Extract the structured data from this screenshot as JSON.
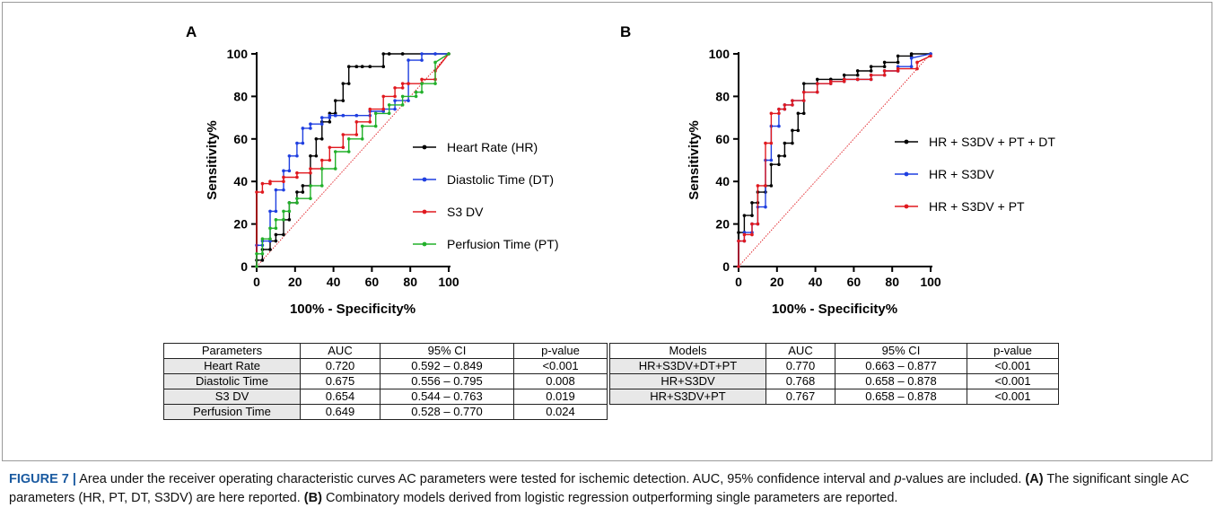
{
  "chart_data": [
    {
      "type": "line",
      "panel": "A",
      "xlabel": "100% - Specificity%",
      "ylabel": "Sensitivity%",
      "xlim": [
        0,
        100
      ],
      "ylim": [
        0,
        100
      ],
      "xticks": [
        "0",
        "20",
        "40",
        "60",
        "80",
        "100"
      ],
      "yticks": [
        "0",
        "20",
        "40",
        "60",
        "80",
        "100"
      ],
      "reference_line": true,
      "legend_position": "center-right",
      "series": [
        {
          "name": "Heart Rate (HR)",
          "color": "#000000",
          "x": [
            0,
            0,
            3,
            3,
            7,
            7,
            10,
            10,
            14,
            14,
            17,
            17,
            21,
            21,
            24,
            24,
            28,
            28,
            31,
            31,
            34,
            34,
            38,
            38,
            41,
            41,
            45,
            45,
            48,
            48,
            52,
            52,
            55,
            55,
            59,
            59,
            66,
            66,
            69,
            69,
            76,
            76,
            100
          ],
          "y": [
            0,
            3,
            3,
            8,
            8,
            12,
            12,
            15,
            15,
            22,
            22,
            30,
            30,
            35,
            35,
            38,
            38,
            52,
            52,
            60,
            60,
            68,
            68,
            72,
            72,
            78,
            78,
            86,
            86,
            94,
            94,
            94,
            94,
            94,
            94,
            94,
            94,
            100,
            100,
            100,
            100,
            100,
            100
          ]
        },
        {
          "name": "Diastolic Time (DT)",
          "color": "#1f3fe0",
          "x": [
            0,
            0,
            3,
            3,
            7,
            7,
            10,
            10,
            14,
            14,
            17,
            17,
            21,
            21,
            24,
            24,
            28,
            28,
            34,
            34,
            38,
            38,
            41,
            41,
            45,
            45,
            52,
            52,
            59,
            59,
            66,
            66,
            72,
            72,
            79,
            79,
            86,
            86,
            93,
            93,
            100
          ],
          "y": [
            0,
            10,
            10,
            12,
            12,
            26,
            26,
            36,
            36,
            45,
            45,
            52,
            52,
            58,
            58,
            65,
            65,
            67,
            67,
            70,
            70,
            71,
            71,
            71,
            71,
            71,
            71,
            71,
            71,
            73,
            73,
            74,
            74,
            78,
            78,
            97,
            97,
            100,
            100,
            100,
            100
          ]
        },
        {
          "name": "S3 DV",
          "color": "#e0191f",
          "x": [
            0,
            0,
            3,
            3,
            7,
            7,
            14,
            14,
            21,
            21,
            28,
            28,
            34,
            34,
            38,
            38,
            45,
            45,
            52,
            52,
            59,
            59,
            66,
            66,
            72,
            72,
            76,
            76,
            79,
            79,
            86,
            86,
            93,
            93,
            100
          ],
          "y": [
            0,
            35,
            35,
            39,
            39,
            40,
            40,
            42,
            42,
            44,
            44,
            46,
            46,
            50,
            50,
            56,
            56,
            62,
            62,
            68,
            68,
            74,
            74,
            80,
            80,
            84,
            84,
            86,
            86,
            86,
            86,
            88,
            88,
            92,
            100
          ]
        },
        {
          "name": "Perfusion Time (PT)",
          "color": "#22b02a",
          "x": [
            0,
            0,
            3,
            3,
            7,
            7,
            10,
            10,
            14,
            14,
            17,
            17,
            21,
            21,
            28,
            28,
            34,
            34,
            41,
            41,
            48,
            48,
            55,
            55,
            62,
            62,
            69,
            69,
            76,
            76,
            83,
            83,
            86,
            86,
            93,
            93,
            100
          ],
          "y": [
            0,
            6,
            6,
            13,
            13,
            18,
            18,
            22,
            22,
            26,
            26,
            30,
            30,
            32,
            32,
            38,
            38,
            46,
            46,
            54,
            54,
            60,
            60,
            66,
            66,
            72,
            72,
            76,
            76,
            80,
            80,
            82,
            82,
            86,
            86,
            96,
            100
          ]
        }
      ]
    },
    {
      "type": "line",
      "panel": "B",
      "xlabel": "100% - Specificity%",
      "ylabel": "Sensitivity%",
      "xlim": [
        0,
        100
      ],
      "ylim": [
        0,
        100
      ],
      "xticks": [
        "0",
        "20",
        "40",
        "60",
        "80",
        "100"
      ],
      "yticks": [
        "0",
        "20",
        "40",
        "60",
        "80",
        "100"
      ],
      "reference_line": true,
      "legend_position": "center-right",
      "series": [
        {
          "name": "HR + S3DV + PT + DT",
          "color": "#000000",
          "x": [
            0,
            0,
            3,
            3,
            7,
            7,
            10,
            10,
            14,
            14,
            17,
            17,
            21,
            21,
            24,
            24,
            28,
            28,
            31,
            31,
            34,
            34,
            41,
            41,
            48,
            48,
            55,
            55,
            62,
            62,
            69,
            69,
            76,
            76,
            83,
            83,
            90,
            90,
            100
          ],
          "y": [
            0,
            16,
            16,
            24,
            24,
            30,
            30,
            35,
            35,
            38,
            38,
            48,
            48,
            52,
            52,
            58,
            58,
            64,
            64,
            72,
            72,
            86,
            86,
            88,
            88,
            88,
            88,
            90,
            90,
            92,
            92,
            94,
            94,
            96,
            96,
            99,
            99,
            100,
            100
          ]
        },
        {
          "name": "HR + S3DV",
          "color": "#1f3fe0",
          "x": [
            0,
            0,
            3,
            3,
            7,
            7,
            10,
            10,
            14,
            14,
            17,
            17,
            21,
            21,
            24,
            24,
            28,
            28,
            34,
            34,
            41,
            41,
            48,
            48,
            55,
            55,
            62,
            62,
            69,
            69,
            76,
            76,
            83,
            83,
            90,
            90,
            100
          ],
          "y": [
            0,
            12,
            12,
            16,
            16,
            20,
            20,
            28,
            28,
            50,
            50,
            66,
            66,
            74,
            74,
            76,
            76,
            78,
            78,
            82,
            82,
            86,
            86,
            87,
            87,
            88,
            88,
            88,
            88,
            90,
            90,
            92,
            92,
            94,
            94,
            98,
            100
          ]
        },
        {
          "name": "HR + S3DV + PT",
          "color": "#e0191f",
          "x": [
            0,
            0,
            3,
            3,
            7,
            7,
            10,
            10,
            14,
            14,
            17,
            17,
            21,
            21,
            24,
            24,
            28,
            28,
            34,
            34,
            41,
            41,
            48,
            48,
            55,
            55,
            62,
            62,
            69,
            69,
            76,
            76,
            83,
            83,
            93,
            93,
            100
          ],
          "y": [
            0,
            12,
            12,
            15,
            15,
            20,
            20,
            38,
            38,
            58,
            58,
            72,
            72,
            74,
            74,
            76,
            76,
            78,
            78,
            82,
            82,
            86,
            86,
            87,
            87,
            88,
            88,
            88,
            88,
            90,
            90,
            92,
            92,
            93,
            93,
            96,
            99
          ]
        }
      ]
    }
  ],
  "panels": {
    "a_label": "A",
    "b_label": "B"
  },
  "table_a": {
    "headers": [
      "Parameters",
      "AUC",
      "95% CI",
      "p-value"
    ],
    "rows": [
      [
        "Heart Rate",
        "0.720",
        "0.592 – 0.849",
        "<0.001"
      ],
      [
        "Diastolic Time",
        "0.675",
        "0.556 – 0.795",
        "0.008"
      ],
      [
        "S3 DV",
        "0.654",
        "0.544 – 0.763",
        "0.019"
      ],
      [
        "Perfusion Time",
        "0.649",
        "0.528 – 0.770",
        "0.024"
      ]
    ]
  },
  "table_b": {
    "headers": [
      "Models",
      "AUC",
      "95% CI",
      "p-value"
    ],
    "rows": [
      [
        "HR+S3DV+DT+PT",
        "0.770",
        "0.663 – 0.877",
        "<0.001"
      ],
      [
        "HR+S3DV",
        "0.768",
        "0.658 – 0.878",
        "<0.001"
      ],
      [
        "HR+S3DV+PT",
        "0.767",
        "0.658 – 0.878",
        "<0.001"
      ]
    ]
  },
  "caption": {
    "figure_label": "FIGURE 7 |",
    "text1": "Area under the receiver operating characteristic curves AC parameters were tested for ischemic detection. AUC, 95% confidence interval and ",
    "p_italic": "p",
    "text2": "-values are included. ",
    "a_ref": "(A)",
    "text3": " The significant single AC parameters (HR, PT, DT, S3DV) are here reported. ",
    "b_ref": "(B)",
    "text4": " Combinatory models derived from logistic regression outperforming single parameters are reported."
  }
}
